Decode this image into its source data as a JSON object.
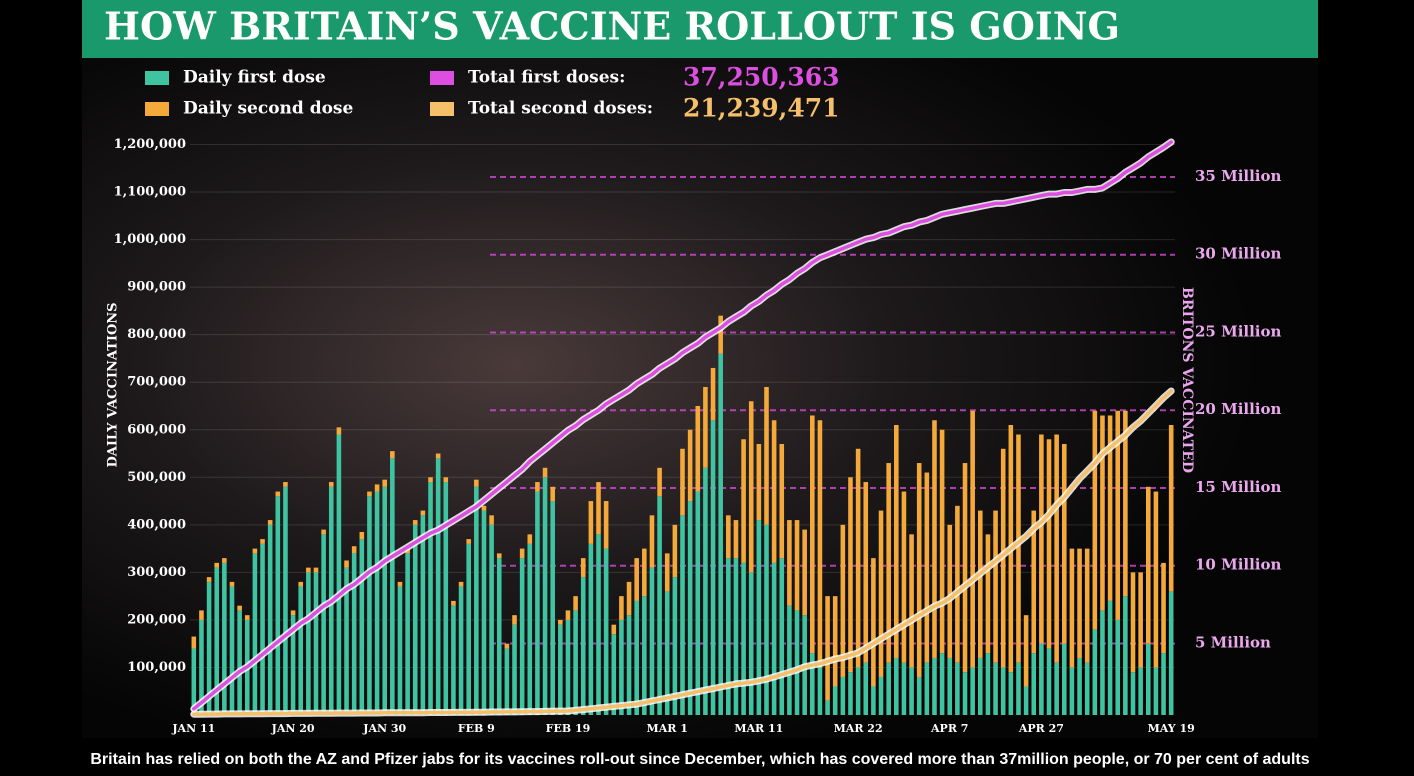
{
  "chart_data": {
    "type": "bar",
    "title": "HOW BRITAIN’S VACCINE ROLLOUT IS GOING",
    "ylabel": "DAILY VACCINATIONS",
    "y2label": "BRITONS VACCINATED",
    "stacked": true,
    "categories": [
      "JAN 11",
      null,
      null,
      null,
      null,
      null,
      null,
      null,
      null,
      null,
      null,
      null,
      null,
      "JAN 20",
      null,
      null,
      null,
      null,
      null,
      null,
      null,
      null,
      null,
      null,
      null,
      "JAN 30",
      null,
      null,
      null,
      null,
      null,
      null,
      null,
      null,
      null,
      null,
      null,
      "FEB 9",
      null,
      null,
      null,
      null,
      null,
      null,
      null,
      null,
      null,
      null,
      null,
      "FEB 19",
      null,
      null,
      null,
      null,
      null,
      null,
      null,
      null,
      null,
      null,
      null,
      null,
      "MAR 1",
      null,
      null,
      null,
      null,
      null,
      null,
      null,
      null,
      null,
      null,
      null,
      "MAR 11",
      null,
      null,
      null,
      null,
      null,
      null,
      null,
      null,
      null,
      null,
      null,
      null,
      "MAR 22",
      null,
      null,
      null,
      null,
      null,
      null,
      null,
      null,
      null,
      null,
      null,
      "APR 7",
      null,
      null,
      null,
      null,
      null,
      null,
      null,
      null,
      null,
      null,
      null,
      "APR 27",
      null,
      null,
      null,
      null,
      null,
      null,
      null,
      null,
      null,
      null,
      null,
      null,
      null,
      null,
      null,
      null,
      "MAY 19"
    ],
    "series": [
      {
        "name": "Daily first dose",
        "type": "bar",
        "color": "#3fc4a2",
        "values": [
          140000.0,
          200000.0,
          280000.0,
          310000.0,
          320000.0,
          270000.0,
          220000.0,
          200000.0,
          340000.0,
          360000.0,
          400000.0,
          460000.0,
          480000.0,
          210000.0,
          270000.0,
          300000.0,
          300000.0,
          380000.0,
          480000.0,
          590000.0,
          310000.0,
          340000.0,
          370000.0,
          460000.0,
          470000.0,
          480000.0,
          540000.0,
          270000.0,
          340000.0,
          400000.0,
          420000.0,
          490000.0,
          540000.0,
          490000.0,
          230000.0,
          270000.0,
          360000.0,
          480000.0,
          430000.0,
          400000.0,
          330000.0,
          140000.0,
          190000.0,
          330000.0,
          360000.0,
          470000.0,
          500000.0,
          450000.0,
          190000.0,
          200000.0,
          220000.0,
          290000.0,
          360000.0,
          380000.0,
          350000.0,
          170000.0,
          200000.0,
          210000.0,
          240000.0,
          250000.0,
          310000.0,
          460000.0,
          260000.0,
          290000.0,
          420000.0,
          450000.0,
          470000.0,
          520000.0,
          620000.0,
          760000.0,
          330000.0,
          330000.0,
          320000.0,
          300000.0,
          410000.0,
          400000.0,
          320000.0,
          330000.0,
          230000.0,
          220000.0,
          210000.0,
          130000.0,
          100000.0,
          30000.0,
          60000.0,
          80000.0,
          90000.0,
          100000.0,
          110000.0,
          60000.0,
          80000.0,
          110000.0,
          120000.0,
          110000.0,
          100000.0,
          80000.0,
          110000.0,
          120000.0,
          130000.0,
          120000.0,
          110000.0,
          90000.0,
          100000.0,
          120000.0,
          130000.0,
          110000.0,
          100000.0,
          90000.0,
          110000.0,
          60000.0,
          130000.0,
          150000.0,
          140000.0,
          110000.0,
          150000.0,
          100000.0,
          120000.0,
          110000.0,
          180000.0,
          220000.0,
          240000.0,
          200000.0,
          250000.0,
          90000.0,
          100000.0,
          150000.0,
          100000.0,
          130000.0,
          260000.0
        ]
      },
      {
        "name": "Daily second dose",
        "type": "bar",
        "color": "#f4a93b",
        "values": [
          25000.0,
          20000.0,
          10000.0,
          10000.0,
          10000.0,
          10000.0,
          10000.0,
          10000.0,
          10000.0,
          10000.0,
          10000.0,
          10000.0,
          10000.0,
          10000.0,
          10000.0,
          10000.0,
          10000.0,
          10000.0,
          10000.0,
          15000.0,
          15000.0,
          15000.0,
          15000.0,
          10000.0,
          15000.0,
          15000.0,
          15000.0,
          10000.0,
          10000.0,
          10000.0,
          10000.0,
          10000.0,
          10000.0,
          10000.0,
          10000.0,
          10000.0,
          10000.0,
          15000.0,
          10000.0,
          20000.0,
          10000.0,
          10000.0,
          20000.0,
          20000.0,
          20000.0,
          20000.0,
          20000.0,
          30000.0,
          10000.0,
          20000.0,
          30000.0,
          40000.0,
          90000.0,
          110000.0,
          100000.0,
          20000.0,
          50000.0,
          70000.0,
          90000.0,
          100000.0,
          110000.0,
          60000.0,
          80000.0,
          110000.0,
          140000.0,
          150000.0,
          180000.0,
          170000.0,
          110000.0,
          80000.0,
          90000.0,
          80000.0,
          260000.0,
          360000.0,
          160000.0,
          290000.0,
          300000.0,
          240000.0,
          180000.0,
          190000.0,
          180000.0,
          500000.0,
          520000.0,
          220000.0,
          190000.0,
          320000.0,
          410000.0,
          460000.0,
          380000.0,
          270000.0,
          350000.0,
          420000.0,
          490000.0,
          360000.0,
          280000.0,
          450000.0,
          400000.0,
          500000.0,
          470000.0,
          280000.0,
          330000.0,
          440000.0,
          540000.0,
          310000.0,
          250000.0,
          320000.0,
          460000.0,
          520000.0,
          480000.0,
          150000.0,
          300000.0,
          440000.0,
          440000.0,
          480000.0,
          420000.0,
          250000.0,
          230000.0,
          240000.0,
          460000.0,
          410000.0,
          390000.0,
          440000.0,
          390000.0,
          210000.0,
          200000.0,
          330000.0,
          370000.0,
          190000.0,
          350000.0
        ]
      },
      {
        "name": "Total first doses:",
        "total_label": "37,250,363",
        "type": "line",
        "axis": "y2",
        "color": "#dd4fe0",
        "values": [
          800000.0,
          1200000.0,
          1600000.0,
          2000000.0,
          2400000.0,
          2800000.0,
          3200000.0,
          3500000.0,
          3900000.0,
          4300000.0,
          4700000.0,
          5100000.0,
          5500000.0,
          5900000.0,
          6300000.0,
          6600000.0,
          7000000.0,
          7400000.0,
          7700000.0,
          8100000.0,
          8500000.0,
          8800000.0,
          9200000.0,
          9600000.0,
          9900000.0,
          10300000.0,
          10600000.0,
          10900000.0,
          11200000.0,
          11500000.0,
          11800000.0,
          12100000.0,
          12300000.0,
          12600000.0,
          12900000.0,
          13200000.0,
          13500000.0,
          13800000.0,
          14200000.0,
          14600000.0,
          15000000.0,
          15400000.0,
          15800000.0,
          16200000.0,
          16700000.0,
          17100000.0,
          17500000.0,
          17900000.0,
          18300000.0,
          18700000.0,
          19000000.0,
          19400000.0,
          19700000.0,
          20000000.0,
          20400000.0,
          20700000.0,
          21000000.0,
          21300000.0,
          21700000.0,
          22000000.0,
          22300000.0,
          22700000.0,
          23000000.0,
          23300000.0,
          23700000.0,
          24000000.0,
          24300000.0,
          24700000.0,
          25000000.0,
          25300000.0,
          25700000.0,
          26000000.0,
          26300000.0,
          26700000.0,
          27000000.0,
          27400000.0,
          27700000.0,
          28100000.0,
          28400000.0,
          28800000.0,
          29100000.0,
          29500000.0,
          29800000.0,
          30000000.0,
          30200000.0,
          30400000.0,
          30600000.0,
          30800000.0,
          31000000.0,
          31100000.0,
          31300000.0,
          31400000.0,
          31600000.0,
          31800000.0,
          31900000.0,
          32100000.0,
          32200000.0,
          32400000.0,
          32600000.0,
          32700000.0,
          32800000.0,
          32900000.0,
          33000000.0,
          33100000.0,
          33200000.0,
          33300000.0,
          33300000.0,
          33400000.0,
          33500000.0,
          33600000.0,
          33700000.0,
          33800000.0,
          33900000.0,
          33900000.0,
          34000000.0,
          34000000.0,
          34100000.0,
          34200000.0,
          34200000.0,
          34300000.0,
          34600000.0,
          34900000.0,
          35300000.0,
          35600000.0,
          35900000.0,
          36300000.0,
          36600000.0,
          36900000.0,
          37250363
        ]
      },
      {
        "name": "Total second doses:",
        "total_label": "21,239,471",
        "type": "line",
        "axis": "y2",
        "color": "#f6c06a",
        "values": [
          450000.0,
          450000.0,
          460000.0,
          460000.0,
          470000.0,
          470000.0,
          470000.0,
          480000.0,
          480000.0,
          480000.0,
          490000.0,
          490000.0,
          490000.0,
          500000.0,
          500000.0,
          500000.0,
          510000.0,
          510000.0,
          510000.0,
          520000.0,
          520000.0,
          520000.0,
          530000.0,
          530000.0,
          530000.0,
          540000.0,
          540000.0,
          540000.0,
          550000.0,
          550000.0,
          550000.0,
          560000.0,
          560000.0,
          560000.0,
          570000.0,
          570000.0,
          570000.0,
          580000.0,
          580000.0,
          590000.0,
          590000.0,
          600000.0,
          600000.0,
          610000.0,
          620000.0,
          620000.0,
          630000.0,
          640000.0,
          650000.0,
          660000.0,
          700000.0,
          750000.0,
          800000.0,
          850000.0,
          900000.0,
          950000.0,
          1000000.0,
          1050000.0,
          1100000.0,
          1200000.0,
          1300000.0,
          1400000.0,
          1500000.0,
          1600000.0,
          1700000.0,
          1800000.0,
          1900000.0,
          2000000.0,
          2100000.0,
          2200000.0,
          2300000.0,
          2400000.0,
          2450000.0,
          2500000.0,
          2600000.0,
          2700000.0,
          2850000.0,
          3000000.0,
          3150000.0,
          3300000.0,
          3500000.0,
          3600000.0,
          3700000.0,
          3850000.0,
          4000000.0,
          4100000.0,
          4250000.0,
          4400000.0,
          4700000.0,
          5000000.0,
          5300000.0,
          5600000.0,
          5900000.0,
          6200000.0,
          6500000.0,
          6800000.0,
          7100000.0,
          7400000.0,
          7600000.0,
          7900000.0,
          8300000.0,
          8700000.0,
          9100000.0,
          9500000.0,
          9900000.0,
          10300000.0,
          10700000.0,
          11100000.0,
          11500000.0,
          11900000.0,
          12400000.0,
          12800000.0,
          13300000.0,
          13900000.0,
          14400000.0,
          15000000.0,
          15600000.0,
          16100000.0,
          16600000.0,
          17200000.0,
          17600000.0,
          18000000.0,
          18400000.0,
          18900000.0,
          19300000.0,
          19800000.0,
          20300000.0,
          20800000.0,
          21239471
        ]
      }
    ],
    "ylim": [
      0,
      1220000
    ],
    "yticks": [
      {
        "value": 100000,
        "label": "100,000"
      },
      {
        "value": 200000,
        "label": "200,000"
      },
      {
        "value": 300000,
        "label": "300,000"
      },
      {
        "value": 400000,
        "label": "400,000"
      },
      {
        "value": 500000,
        "label": "500,000"
      },
      {
        "value": 600000,
        "label": "600,000"
      },
      {
        "value": 700000,
        "label": "700,000"
      },
      {
        "value": 800000,
        "label": "800,000"
      },
      {
        "value": 900000,
        "label": "900,000"
      },
      {
        "value": 1000000,
        "label": "1,000,000"
      },
      {
        "value": 1100000,
        "label": "1,100,000"
      },
      {
        "value": 1200000,
        "label": "1,200,000"
      }
    ],
    "y2lim": [
      400000,
      37700000
    ],
    "y2ticks": [
      {
        "value": 5000000,
        "label": "5 Million"
      },
      {
        "value": 10000000,
        "label": "10 Million"
      },
      {
        "value": 15000000,
        "label": "15 Million"
      },
      {
        "value": 20000000,
        "label": "20 Million"
      },
      {
        "value": 25000000,
        "label": "25 Million"
      },
      {
        "value": 30000000,
        "label": "30 Million"
      },
      {
        "value": 35000000,
        "label": "35 Million"
      }
    ],
    "grid": true,
    "caption": "Britain has relied on both the AZ and Pfizer jabs for its vaccines roll-out since December, which has covered more than 37million people, or 70 per cent of adults"
  }
}
